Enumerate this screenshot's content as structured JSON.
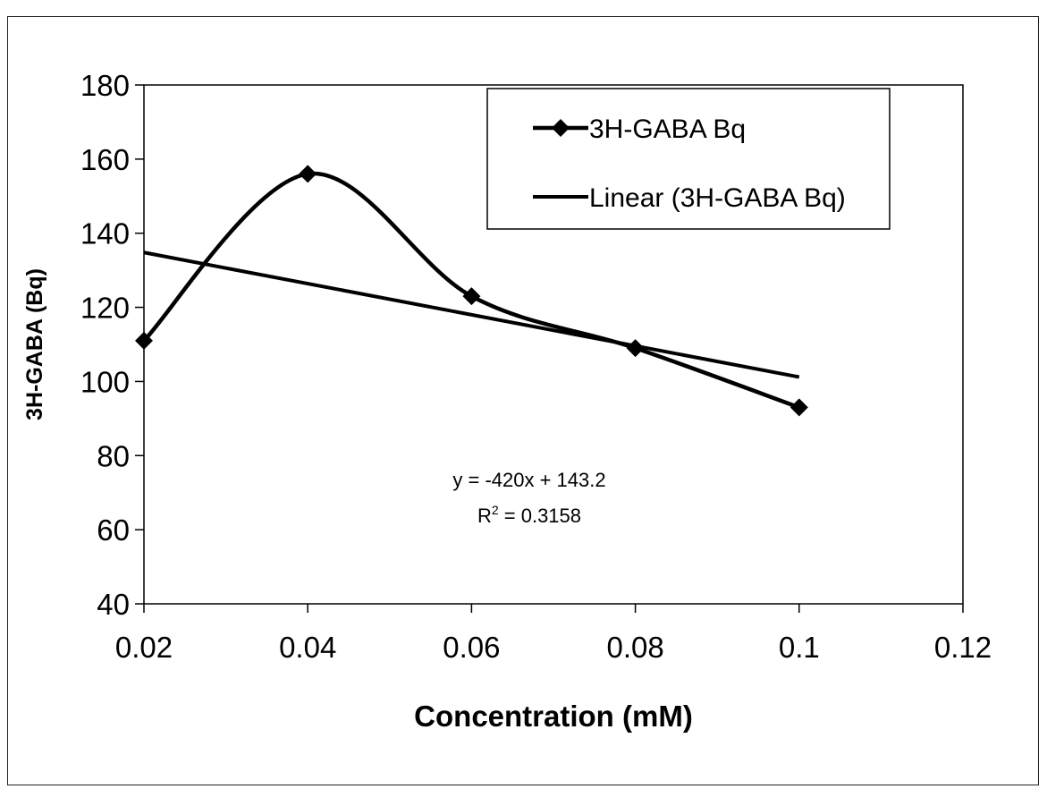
{
  "chart_data": {
    "type": "line",
    "title": "",
    "xlabel": "Concentration (mM)",
    "ylabel": "3H-GABA (Bq)",
    "xlim": [
      0.02,
      0.12
    ],
    "ylim": [
      40,
      180
    ],
    "xticks": [
      0.02,
      0.04,
      0.06,
      0.08,
      0.1,
      0.12
    ],
    "xtick_labels": [
      "0.02",
      "0.04",
      "0.06",
      "0.08",
      "0.1",
      "0.12"
    ],
    "yticks": [
      40,
      60,
      80,
      100,
      120,
      140,
      160,
      180
    ],
    "ytick_labels": [
      "40",
      "60",
      "80",
      "100",
      "120",
      "140",
      "160",
      "180"
    ],
    "grid": false,
    "legend_position": "top-right",
    "series": [
      {
        "name": "3H-GABA Bq",
        "style": "smoothed-line-with-diamond-markers",
        "color": "#000000",
        "x": [
          0.02,
          0.04,
          0.06,
          0.08,
          0.1
        ],
        "y": [
          111,
          156,
          123,
          109,
          93
        ]
      },
      {
        "name": "Linear (3H-GABA Bq)",
        "style": "trendline",
        "color": "#000000",
        "x": [
          0.02,
          0.1
        ],
        "y": [
          134.8,
          101.2
        ]
      }
    ],
    "annotation": {
      "equation": "y = -420x + 143.2",
      "r2_prefix": "R",
      "r2_sup": "2",
      "r2_suffix": " = 0.3158"
    }
  }
}
